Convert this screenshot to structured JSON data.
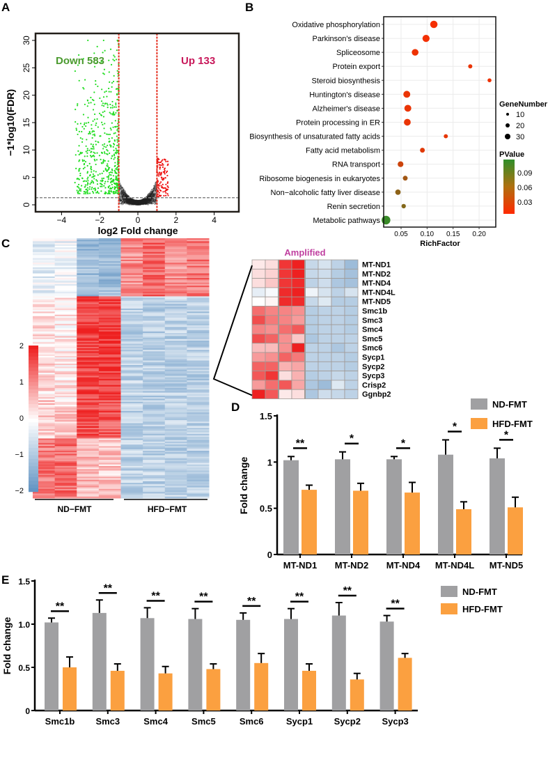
{
  "panel_labels": {
    "a": "A",
    "b": "B",
    "c": "C",
    "d": "D",
    "e": "E"
  },
  "chart_data": [
    {
      "panel": "A",
      "type": "scatter",
      "xlabel": "log2 Fold change",
      "ylabel": "−1*log10(FDR)",
      "xlim": [
        -5.5,
        5.5
      ],
      "ylim": [
        -1,
        31
      ],
      "xticks": [
        "−4",
        "−2",
        "0",
        "2",
        "4"
      ],
      "yticks": [
        "0",
        "5",
        "10",
        "15",
        "20",
        "25",
        "30"
      ],
      "fold_thresholds": [
        -1,
        1
      ],
      "fdr_threshold": 1.3,
      "annotations": {
        "down": "Down 583",
        "up": "Up 133"
      },
      "colors": {
        "down": "#22dd22",
        "up": "#ee1111",
        "ns": "#222222",
        "down_label": "#4a9a2e",
        "up_label": "#c8185a"
      }
    },
    {
      "panel": "B",
      "type": "scatter",
      "xlabel": "RichFactor",
      "xticks": [
        "0.05",
        "0.10",
        "0.15",
        "0.20"
      ],
      "xlim": [
        0.014,
        0.229
      ],
      "grid": true,
      "categories": [
        "Oxidative phosphorylation",
        "Parkinson's disease",
        "Spliceosome",
        "Protein export",
        "Steroid biosynthesis",
        "Huntington's disease",
        "Alzheimer's disease",
        "Protein processing in ER",
        "Biosynthesis of unsaturated fatty acids",
        "Fatty acid metabolism",
        "RNA transport",
        "Ribosome biogenesis in eukaryotes",
        "Non−alcoholic fatty liver disease",
        "Renin secretion",
        "Metabolic pathways"
      ],
      "rich_factor": [
        0.113,
        0.098,
        0.077,
        0.183,
        0.22,
        0.061,
        0.063,
        0.062,
        0.136,
        0.091,
        0.049,
        0.058,
        0.044,
        0.055,
        0.021
      ],
      "gene_number": [
        26,
        24,
        20,
        5,
        4,
        22,
        22,
        21,
        5,
        8,
        13,
        8,
        11,
        6,
        40
      ],
      "pvalue": [
        0.005,
        0.006,
        0.008,
        0.01,
        0.008,
        0.01,
        0.01,
        0.01,
        0.012,
        0.015,
        0.025,
        0.045,
        0.055,
        0.06,
        0.095
      ],
      "legend": {
        "size_title": "GeneNumber",
        "size_labels": [
          "10",
          "20",
          "30"
        ],
        "color_title": "PValue",
        "color_labels": [
          "0.09",
          "0.06",
          "0.03"
        ],
        "colors": {
          "low": "#ff2a00",
          "high": "#2f8f2a"
        },
        "placement": "right"
      }
    },
    {
      "panel": "C",
      "type": "heatmap",
      "groups": [
        "ND−FMT",
        "HFD−FMT"
      ],
      "scale_labels": [
        "2",
        "1",
        "0",
        "−1",
        "−2"
      ],
      "scale_range": [
        -2,
        2
      ],
      "colors": {
        "high": "#ee2020",
        "mid": "#ffffff",
        "low": "#5b8fc0"
      },
      "inset": {
        "title": "Amplified",
        "title_color": "#c040a0",
        "rows": [
          "MT-ND1",
          "MT-ND2",
          "MT-ND4",
          "MT-ND4L",
          "MT-ND5",
          "Smc1b",
          "Smc3",
          "Smc4",
          "Smc5",
          "Smc6",
          "Sycp1",
          "Sycp2",
          "Sycp3",
          "Crisp2",
          "Ggnbp2"
        ],
        "values": [
          [
            0.2,
            0.3,
            1.8,
            2.0,
            -0.7,
            -0.5,
            -0.8,
            -1.2
          ],
          [
            0.3,
            0.4,
            1.8,
            2.0,
            -0.7,
            -0.6,
            -0.9,
            -1.1
          ],
          [
            0.3,
            0.5,
            1.8,
            1.9,
            -0.8,
            -0.6,
            -1.0,
            -1.1
          ],
          [
            -0.3,
            -0.1,
            1.9,
            2.2,
            -0.2,
            -0.5,
            -0.8,
            -0.5
          ],
          [
            0.0,
            0.1,
            1.9,
            1.9,
            -0.7,
            -0.4,
            -0.9,
            -0.9
          ],
          [
            1.3,
            1.1,
            1.1,
            1.0,
            -0.9,
            -0.8,
            -0.8,
            -0.9
          ],
          [
            1.6,
            1.2,
            1.1,
            0.9,
            -0.9,
            -0.8,
            -0.8,
            -0.9
          ],
          [
            1.1,
            1.0,
            1.3,
            1.5,
            -0.9,
            -0.8,
            -0.8,
            -0.9
          ],
          [
            1.6,
            1.4,
            1.0,
            0.5,
            -1.0,
            -0.8,
            -0.8,
            -0.8
          ],
          [
            0.6,
            0.6,
            1.0,
            2.1,
            -0.8,
            -0.8,
            -1.0,
            -0.8
          ],
          [
            0.9,
            1.0,
            1.4,
            1.2,
            -0.8,
            -0.8,
            -0.8,
            -0.9
          ],
          [
            1.4,
            1.4,
            0.7,
            0.8,
            -0.8,
            -0.8,
            -0.8,
            -0.9
          ],
          [
            1.5,
            1.8,
            0.3,
            0.7,
            -0.9,
            -0.8,
            -0.7,
            -0.8
          ],
          [
            0.9,
            1.3,
            1.5,
            0.8,
            -1.0,
            -1.2,
            -0.4,
            -0.8
          ],
          [
            2.0,
            1.5,
            0.2,
            0.3,
            -1.0,
            -0.6,
            -0.7,
            -0.8
          ]
        ]
      }
    },
    {
      "panel": "D",
      "type": "bar",
      "ylabel": "Fold change",
      "ylim": [
        0,
        1.5
      ],
      "yticks": [
        "0",
        "0.5",
        "1",
        "1.5"
      ],
      "categories": [
        "MT-ND1",
        "MT-ND2",
        "MT-ND4",
        "MT-ND4L",
        "MT-ND5"
      ],
      "series": [
        {
          "name": "ND-FMT",
          "color": "#a0a0a2",
          "values": [
            1.02,
            1.03,
            1.03,
            1.08,
            1.04
          ],
          "errors": [
            0.04,
            0.08,
            0.03,
            0.16,
            0.11
          ]
        },
        {
          "name": "HFD-FMT",
          "color": "#fba040",
          "values": [
            0.7,
            0.69,
            0.67,
            0.49,
            0.51
          ],
          "errors": [
            0.05,
            0.08,
            0.11,
            0.08,
            0.11
          ]
        }
      ],
      "significance": [
        "**",
        "*",
        "*",
        "*",
        "*"
      ],
      "legend": "top-right"
    },
    {
      "panel": "E",
      "type": "bar",
      "ylabel": "Fold change",
      "ylim": [
        0,
        1.5
      ],
      "yticks": [
        "0",
        "0.5",
        "1.0",
        "1.5"
      ],
      "categories": [
        "Smc1b",
        "Smc3",
        "Smc4",
        "Smc5",
        "Smc6",
        "Sycp1",
        "Sycp2",
        "Sycp3"
      ],
      "series": [
        {
          "name": "ND-FMT",
          "color": "#a0a0a2",
          "values": [
            1.02,
            1.13,
            1.07,
            1.06,
            1.05,
            1.06,
            1.1,
            1.03
          ],
          "errors": [
            0.05,
            0.15,
            0.12,
            0.12,
            0.08,
            0.12,
            0.15,
            0.07
          ]
        },
        {
          "name": "HFD-FMT",
          "color": "#fba040",
          "values": [
            0.5,
            0.46,
            0.43,
            0.48,
            0.55,
            0.46,
            0.36,
            0.61
          ],
          "errors": [
            0.12,
            0.08,
            0.08,
            0.06,
            0.11,
            0.08,
            0.07,
            0.05
          ]
        }
      ],
      "significance": [
        "**",
        "**",
        "**",
        "**",
        "**",
        "**",
        "**",
        "**"
      ],
      "legend": "top-right"
    }
  ]
}
